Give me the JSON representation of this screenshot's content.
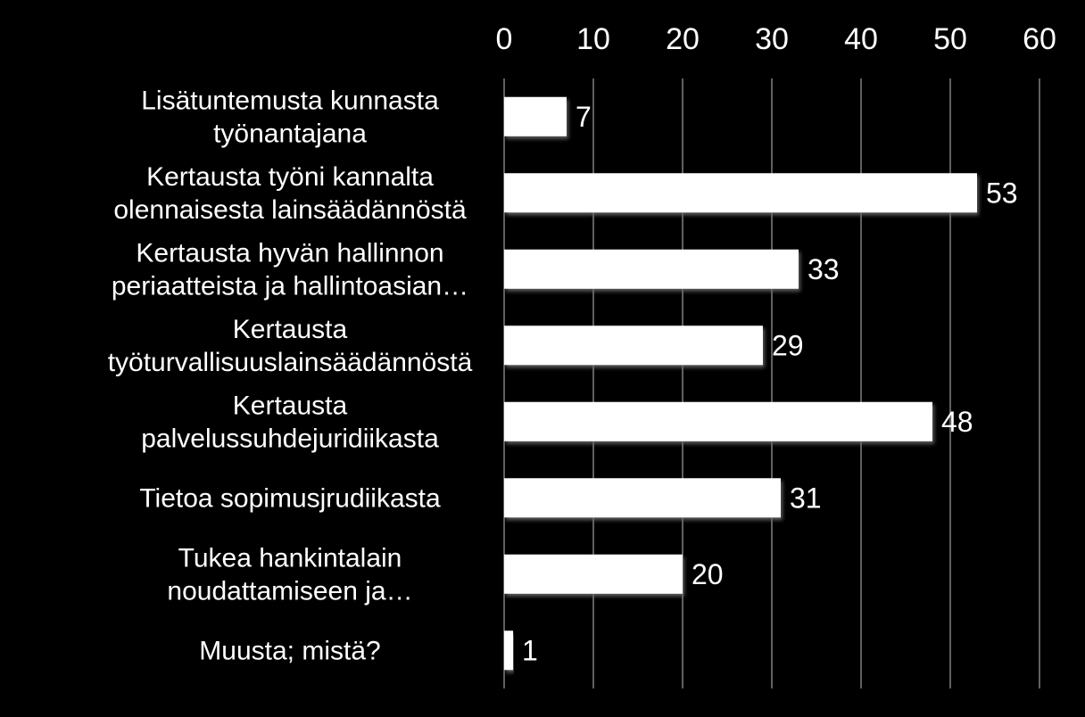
{
  "chart_data": {
    "type": "bar",
    "orientation": "horizontal",
    "title": "",
    "xlabel": "",
    "ylabel": "",
    "xlim": [
      0,
      60
    ],
    "ticks": [
      0,
      10,
      20,
      30,
      40,
      50,
      60
    ],
    "tick_labels": [
      "0",
      "10",
      "20",
      "30",
      "40",
      "50",
      "60"
    ],
    "axis_position": "top",
    "grid": "vertical",
    "legend": "none",
    "categories": [
      {
        "lines": [
          "Lisätuntemusta kunnasta",
          "työnantajana"
        ],
        "align": "center"
      },
      {
        "lines": [
          "Kertausta työni kannalta",
          "olennaisesta lainsäädännöstä"
        ],
        "align": "center"
      },
      {
        "lines": [
          "Kertausta hyvän hallinnon",
          "periaatteista ja hallintoasian…"
        ],
        "align": "center"
      },
      {
        "lines": [
          "Kertausta",
          "työturvallisuuslainsäädännöstä"
        ],
        "align": "center"
      },
      {
        "lines": [
          "Kertausta",
          "palvelussuhdejuridiikasta"
        ],
        "align": "center"
      },
      {
        "lines": [
          "Tietoa sopimusjrudiikasta"
        ],
        "align": "center"
      },
      {
        "lines": [
          "Tukea hankintalain",
          "noudattamiseen ja…"
        ],
        "align": "center"
      },
      {
        "lines": [
          "Muusta; mistä?"
        ],
        "align": "center"
      }
    ],
    "values": [
      7,
      53,
      33,
      29,
      48,
      31,
      20,
      1
    ],
    "value_labels": [
      "7",
      "53",
      "33",
      "29",
      "48",
      "31",
      "20",
      "1"
    ],
    "colors": {
      "background": "#000000",
      "bar": "#ffffff",
      "text": "#ffffff",
      "grid": "#808080"
    }
  }
}
